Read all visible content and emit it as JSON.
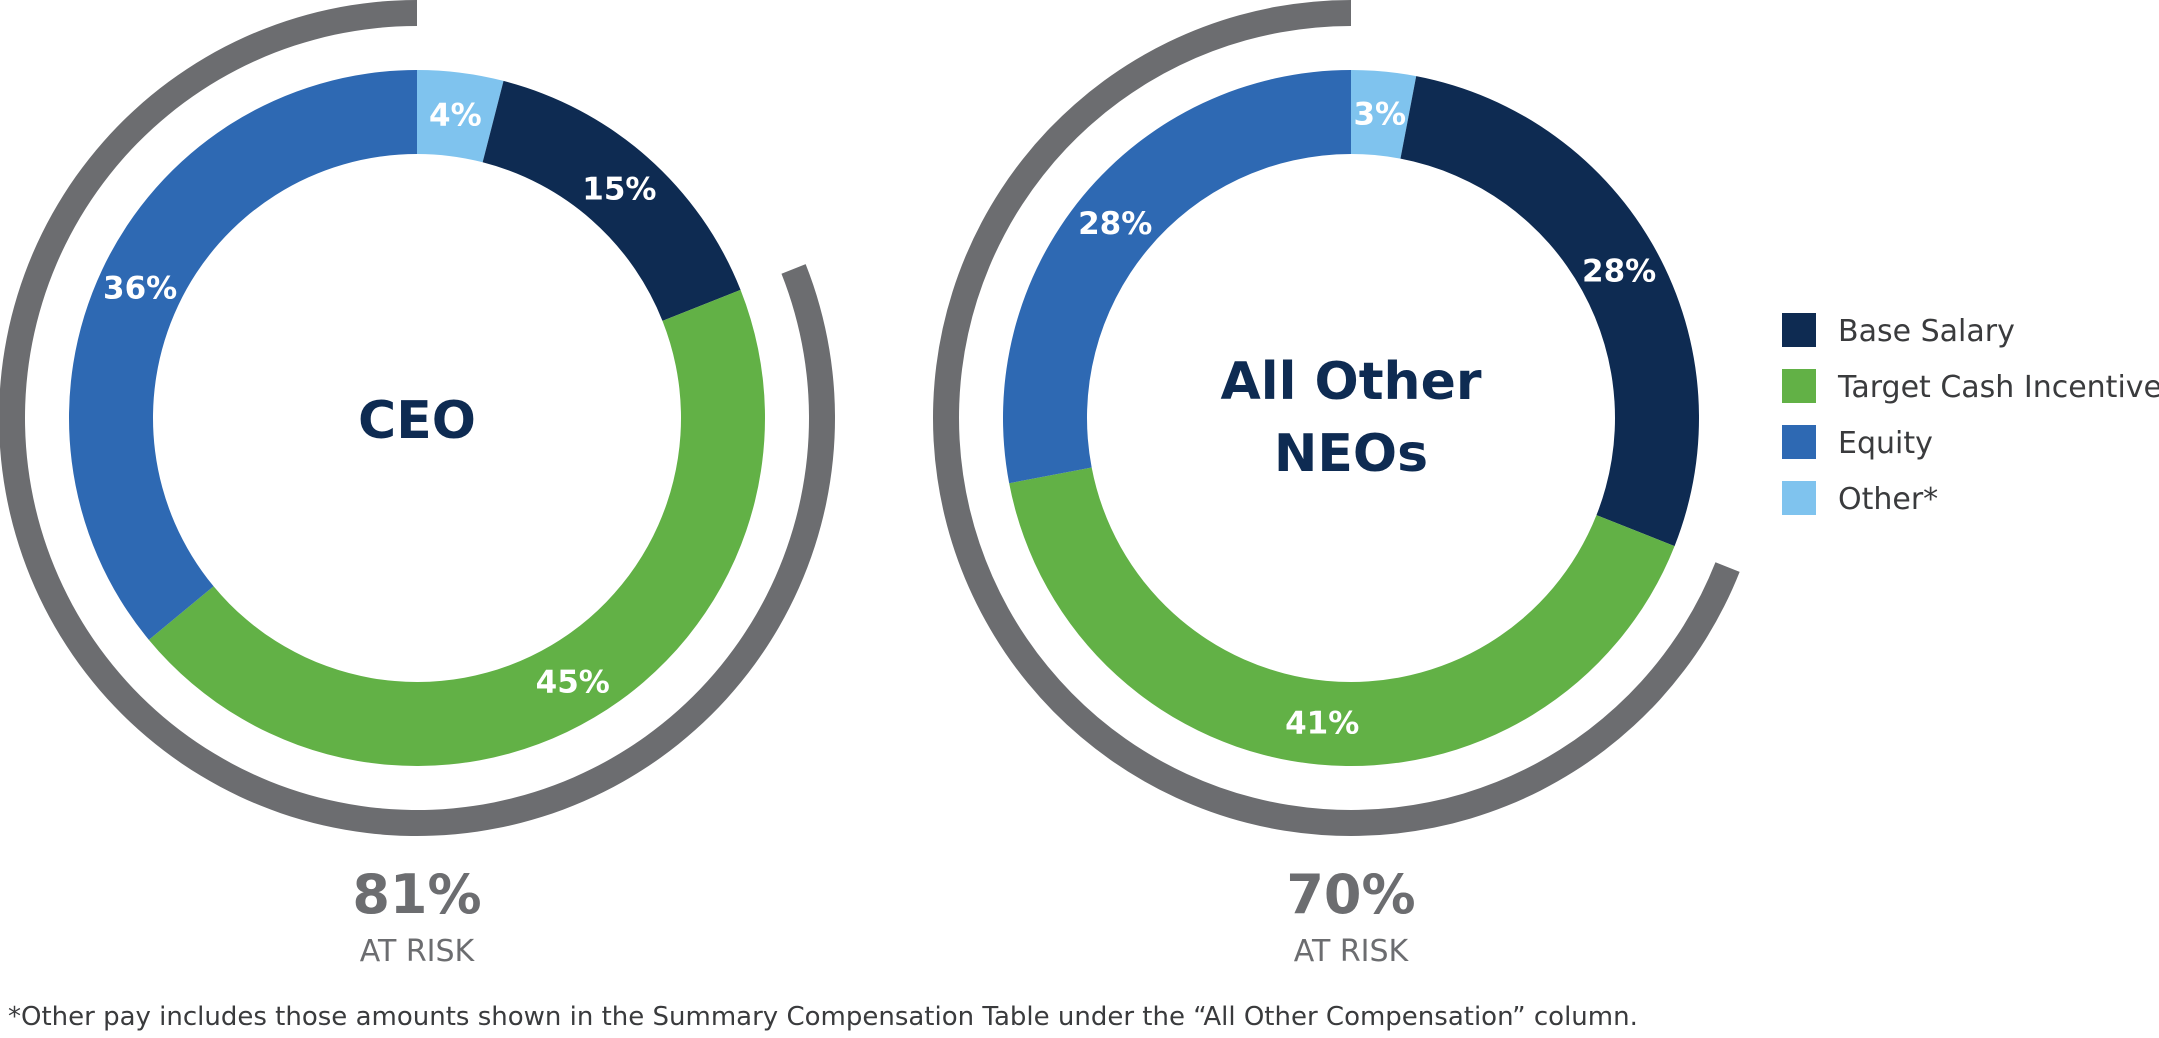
{
  "colors": {
    "Base Salary": "#0e2b52",
    "Target Cash Incentive": "#62b146",
    "Equity": "#2e69b3",
    "Other*": "#7fc3ee",
    "at_risk_arc": "#6c6d70",
    "title": "#0e2b52"
  },
  "chart_data": [
    {
      "type": "pie",
      "style": "donut",
      "center_label": [
        "CEO"
      ],
      "categories": [
        "Other*",
        "Base Salary",
        "Target Cash Incentive",
        "Equity"
      ],
      "values": [
        4,
        15,
        45,
        36
      ],
      "value_labels": [
        "4%",
        "15%",
        "45%",
        "36%"
      ],
      "at_risk": {
        "value": 81,
        "label_value": "81%",
        "label_text": "AT RISK"
      }
    },
    {
      "type": "pie",
      "style": "donut",
      "center_label": [
        "All Other",
        "NEOs"
      ],
      "categories": [
        "Other*",
        "Base Salary",
        "Target Cash Incentive",
        "Equity"
      ],
      "values": [
        3,
        28,
        41,
        28
      ],
      "value_labels": [
        "3%",
        "28%",
        "41%",
        "28%"
      ],
      "at_risk": {
        "value": 70,
        "label_value": "70%",
        "label_text": "AT RISK"
      }
    }
  ],
  "legend": {
    "items": [
      {
        "label": "Base Salary"
      },
      {
        "label": "Target Cash Incentive"
      },
      {
        "label": "Equity"
      },
      {
        "label": "Other*"
      }
    ]
  },
  "footnote": "*Other pay includes those amounts shown in the Summary Compensation Table under the “All Other Compensation” column."
}
